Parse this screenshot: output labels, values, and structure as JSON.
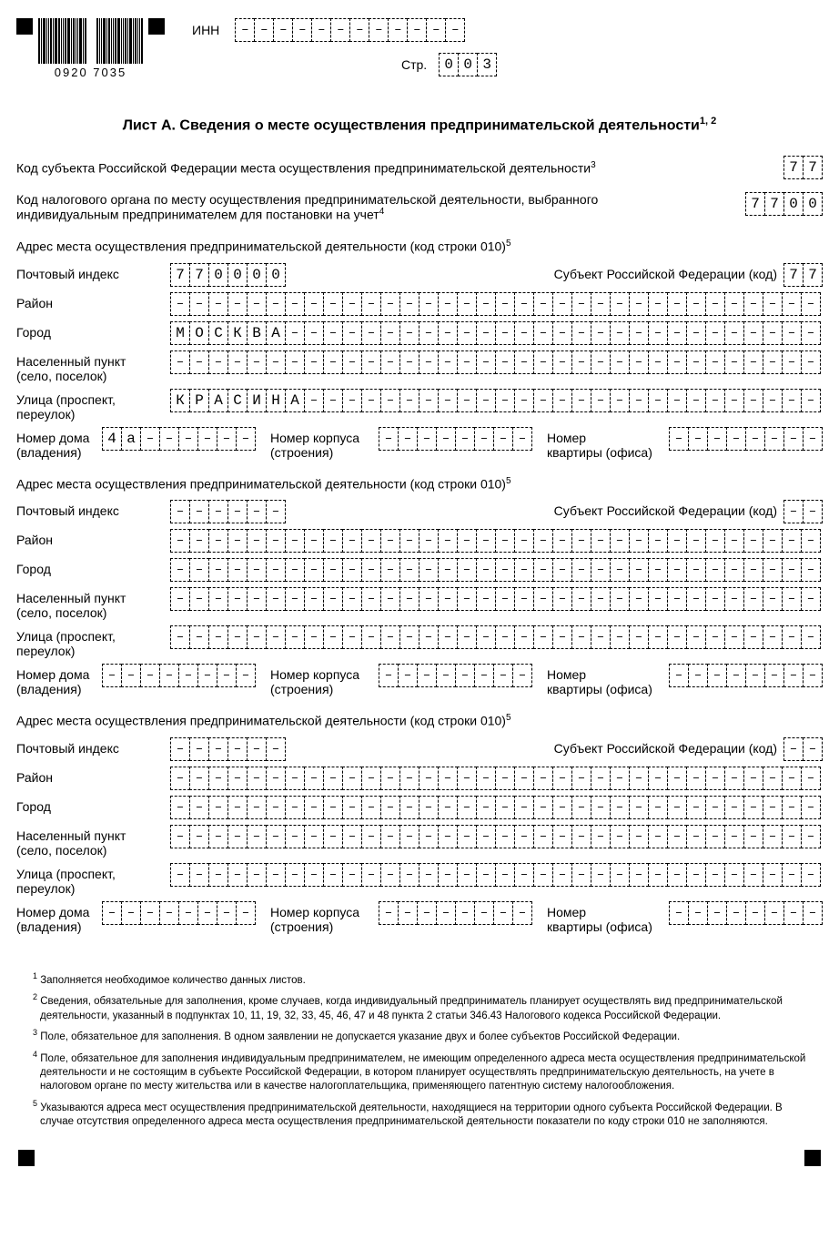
{
  "barcode_number": "0920  7035",
  "header": {
    "inn_label": "ИНН",
    "inn_cells": 12,
    "page_label": "Стр.",
    "page_value": [
      "0",
      "0",
      "3"
    ]
  },
  "title": "Лист А. Сведения о месте осуществления предпринимательской деятельности",
  "title_sup": "1, 2",
  "line1": {
    "text": "Код субъекта Российской Федерации места осуществления предпринимательской деятельности",
    "sup": "3",
    "value": [
      "7",
      "7"
    ]
  },
  "line2": {
    "text_a": "Код налогового органа по месту осуществления предпринимательской деятельности, выбранного",
    "text_b": "индивидуальным предпринимателем для постановки на учет",
    "sup": "4",
    "value": [
      "7",
      "7",
      "0",
      "0"
    ]
  },
  "addr_heading": {
    "text": "Адрес места осуществления предпринимательской деятельности (код строки 010)",
    "sup": "5"
  },
  "labels": {
    "postal": "Почтовый индекс",
    "subj": "Субъект Российской Федерации (код)",
    "district": "Район",
    "city": "Город",
    "settlement_a": "Населенный пункт",
    "settlement_b": "(село, поселок)",
    "street_a": "Улица (проспект,",
    "street_b": "переулок)",
    "house_a": "Номер дома",
    "house_b": "(владения)",
    "corp_a": "Номер корпуса",
    "corp_b": "(строения)",
    "apt_a": "Номер",
    "apt_b": "квартиры (офиса)"
  },
  "long_cells": 34,
  "triple_cells": 8,
  "blocks": [
    {
      "postal": [
        "7",
        "7",
        "0",
        "0",
        "0",
        "0"
      ],
      "subj": [
        "7",
        "7"
      ],
      "district": [],
      "city": [
        "М",
        "О",
        "С",
        "К",
        "В",
        "А"
      ],
      "settlement": [],
      "street": [
        "К",
        "Р",
        "А",
        "С",
        "И",
        "Н",
        "А"
      ],
      "house": [
        "4",
        "а"
      ],
      "corp": [],
      "apt": []
    },
    {
      "postal": [],
      "subj": [],
      "district": [],
      "city": [],
      "settlement": [],
      "street": [],
      "house": [],
      "corp": [],
      "apt": []
    },
    {
      "postal": [],
      "subj": [],
      "district": [],
      "city": [],
      "settlement": [],
      "street": [],
      "house": [],
      "corp": [],
      "apt": []
    }
  ],
  "footnotes": [
    "Заполняется необходимое количество данных листов.",
    "Сведения, обязательные для заполнения, кроме случаев, когда индивидуальный предприниматель планирует осуществлять вид предпринимательской деятельности, указанный в подпунктах 10, 11, 19, 32, 33, 45, 46, 47 и 48 пункта 2 статьи 346.43 Налогового кодекса Российской Федерации.",
    "Поле, обязательное для заполнения. В одном заявлении не допускается указание двух и более субъектов Российской Федерации.",
    "Поле, обязательное для заполнения индивидуальным предпринимателем, не имеющим определенного адреса места осуществления предпринимательской деятельности и не состоящим в субъекте Российской Федерации, в котором планирует осуществлять предпринимательскую деятельность, на учете в налоговом органе по месту жительства или в качестве налогоплательщика, применяющего патентную систему налогообложения.",
    "Указываются адреса мест осуществления предпринимательской деятельности, находящиеся на территории одного субъекта Российской Федерации. В случае отсутствия определенного адреса места осуществления предпринимательской деятельности показатели по коду строки 010 не заполняются."
  ]
}
